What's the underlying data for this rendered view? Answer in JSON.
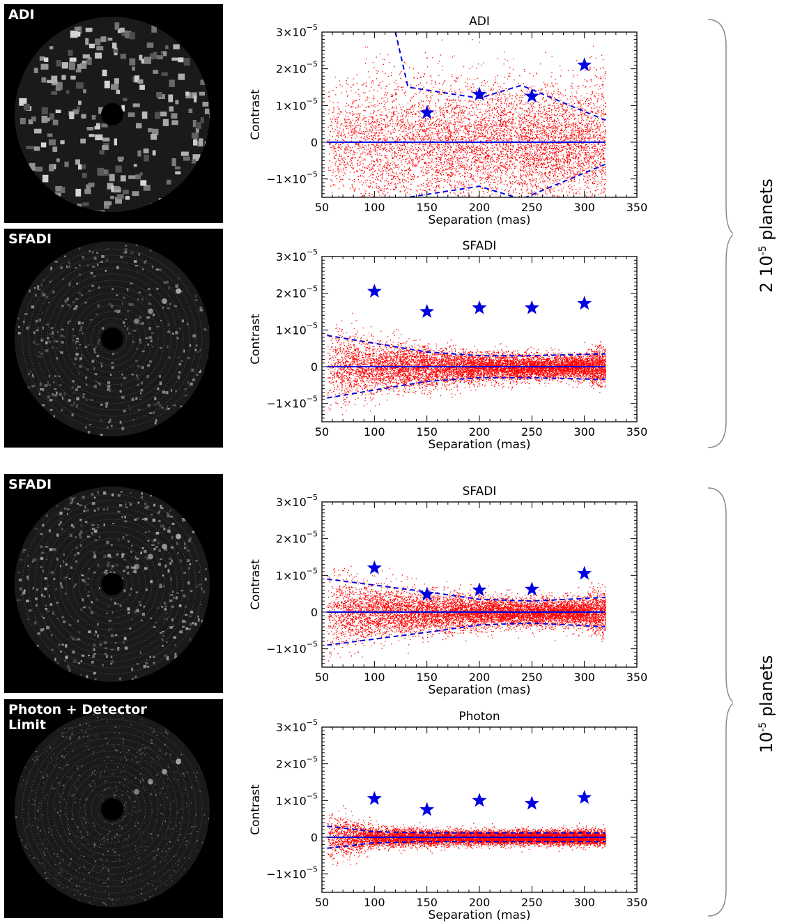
{
  "images": [
    {
      "label": "ADI",
      "style": "adi"
    },
    {
      "label": "SFADI",
      "style": "sfadi"
    },
    {
      "label": "SFADI",
      "style": "sfadi2"
    },
    {
      "label": "Photon + Detector\nLimit",
      "style": "photon"
    }
  ],
  "groups": [
    {
      "base": "2 10",
      "exp": "-5",
      "rest": " planets"
    },
    {
      "base": "10",
      "exp": "-5",
      "rest": " planets"
    }
  ],
  "colors": {
    "points": "#ff0000",
    "stars": "#0000e0",
    "lines": "#0000e0"
  },
  "chart_data": [
    {
      "type": "scatter",
      "title": "ADI",
      "xlabel": "Separation (mas)",
      "ylabel": "Contrast",
      "xlim": [
        50,
        350
      ],
      "ylim": [
        -1.5e-05,
        3e-05
      ],
      "xticks": [
        50,
        100,
        150,
        200,
        250,
        300,
        350
      ],
      "yticks": [
        {
          "v": 3e-05,
          "m": "3",
          "e": "−5"
        },
        {
          "v": 2e-05,
          "m": "2",
          "e": "−5"
        },
        {
          "v": 1e-05,
          "m": "1",
          "e": "−5"
        },
        {
          "v": 0,
          "m": "0",
          "e": ""
        },
        {
          "v": -1e-05,
          "m": "−1",
          "e": "−5"
        }
      ],
      "stars": {
        "x": [
          150,
          200,
          250,
          300
        ],
        "y": [
          8e-06,
          1.3e-05,
          1.25e-05,
          2.1e-05
        ]
      },
      "noise": {
        "sigma": [
          7e-06,
          1e-05,
          8e-06,
          8e-06,
          7.5e-06
        ],
        "n": 7000
      },
      "limits": {
        "x": [
          120,
          132,
          200,
          240,
          320
        ],
        "y": [
          3e-05,
          1.5e-05,
          1.2e-05,
          1.55e-05,
          6e-06
        ]
      }
    },
    {
      "type": "scatter",
      "title": "SFADI",
      "xlabel": "Separation (mas)",
      "ylabel": "Contrast",
      "xlim": [
        50,
        350
      ],
      "ylim": [
        -1.5e-05,
        3e-05
      ],
      "xticks": [
        50,
        100,
        150,
        200,
        250,
        300,
        350
      ],
      "yticks": [
        {
          "v": 3e-05,
          "m": "3",
          "e": "−5"
        },
        {
          "v": 2e-05,
          "m": "2",
          "e": "−5"
        },
        {
          "v": 1e-05,
          "m": "1",
          "e": "−5"
        },
        {
          "v": 0,
          "m": "0",
          "e": ""
        },
        {
          "v": -1e-05,
          "m": "−1",
          "e": "−5"
        }
      ],
      "stars": {
        "x": [
          100,
          150,
          200,
          250,
          300
        ],
        "y": [
          2.05e-05,
          1.5e-05,
          1.6e-05,
          1.6e-05,
          1.72e-05
        ]
      },
      "noise": {
        "sigma": [
          5.5e-06,
          3.5e-06,
          2e-06,
          1.6e-06,
          1.8e-06
        ],
        "n": 9000
      },
      "limits": {
        "x": [
          55,
          150,
          200,
          250,
          320
        ],
        "y": [
          8.5e-06,
          4e-06,
          3e-06,
          3e-06,
          3.5e-06
        ]
      }
    },
    {
      "type": "scatter",
      "title": "SFADI",
      "xlabel": "Separation (mas)",
      "ylabel": "Contrast",
      "xlim": [
        50,
        350
      ],
      "ylim": [
        -1.5e-05,
        3e-05
      ],
      "xticks": [
        50,
        100,
        150,
        200,
        250,
        300,
        350
      ],
      "yticks": [
        {
          "v": 3e-05,
          "m": "3",
          "e": "−5"
        },
        {
          "v": 2e-05,
          "m": "2",
          "e": "−5"
        },
        {
          "v": 1e-05,
          "m": "1",
          "e": "−5"
        },
        {
          "v": 0,
          "m": "0",
          "e": ""
        },
        {
          "v": -1e-05,
          "m": "−1",
          "e": "−5"
        }
      ],
      "stars": {
        "x": [
          100,
          150,
          200,
          250,
          300
        ],
        "y": [
          1.2e-05,
          4.8e-06,
          6e-06,
          6.2e-06,
          1.05e-05
        ]
      },
      "noise": {
        "sigma": [
          5.5e-06,
          3.5e-06,
          2.2e-06,
          1.8e-06,
          2.2e-06
        ],
        "n": 9000
      },
      "limits": {
        "x": [
          55,
          150,
          200,
          250,
          320
        ],
        "y": [
          9e-06,
          5.5e-06,
          3.5e-06,
          3e-06,
          4e-06
        ]
      }
    },
    {
      "type": "scatter",
      "title": "Photon",
      "xlabel": "Separation (mas)",
      "ylabel": "Contrast",
      "xlim": [
        50,
        350
      ],
      "ylim": [
        -1.5e-05,
        3e-05
      ],
      "xticks": [
        50,
        100,
        150,
        200,
        250,
        300,
        350
      ],
      "yticks": [
        {
          "v": 3e-05,
          "m": "3",
          "e": "−5"
        },
        {
          "v": 2e-05,
          "m": "2",
          "e": "−5"
        },
        {
          "v": 1e-05,
          "m": "1",
          "e": "−5"
        },
        {
          "v": 0,
          "m": "0",
          "e": ""
        },
        {
          "v": -1e-05,
          "m": "−1",
          "e": "−5"
        }
      ],
      "stars": {
        "x": [
          100,
          150,
          200,
          250,
          300
        ],
        "y": [
          1.05e-05,
          7.5e-06,
          1e-05,
          9.2e-06,
          1.08e-05
        ]
      },
      "noise": {
        "sigma": [
          3.5e-06,
          1.3e-06,
          1e-06,
          1e-06,
          1e-06
        ],
        "n": 10000
      },
      "limits": {
        "x": [
          55,
          100,
          150,
          320
        ],
        "y": [
          3e-06,
          1.5e-06,
          1.2e-06,
          1.2e-06
        ]
      }
    }
  ]
}
